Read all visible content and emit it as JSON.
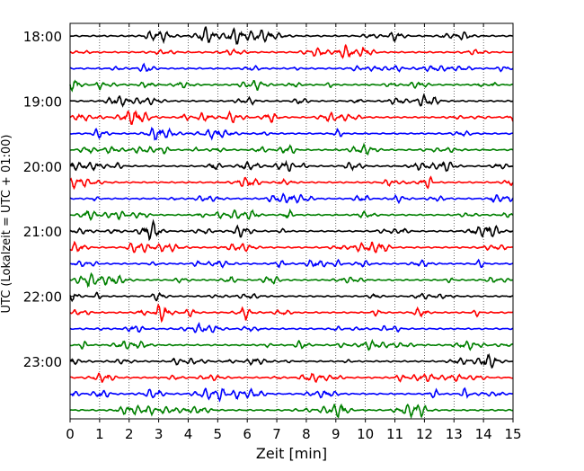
{
  "chart_data": {
    "type": "line",
    "title": "",
    "xlabel": "Zeit  [min]",
    "ylabel": "UTC (Lokalzeit = UTC + 01:00)",
    "xlim": [
      0,
      15
    ],
    "x_ticks": [
      0,
      1,
      2,
      3,
      4,
      5,
      6,
      7,
      8,
      9,
      10,
      11,
      12,
      13,
      14,
      15
    ],
    "x_tick_labels": [
      "0",
      "1",
      "2",
      "3",
      "4",
      "5",
      "6",
      "7",
      "8",
      "9",
      "10",
      "11",
      "12",
      "13",
      "14",
      "15"
    ],
    "y_tick_labels": [
      "18:00",
      "19:00",
      "20:00",
      "21:00",
      "22:00",
      "23:00"
    ],
    "grid": "vertical dotted at each minute",
    "trace_interval_minutes": 15,
    "traces_per_hour": 4,
    "trace_start_times": [
      "18:00",
      "18:15",
      "18:30",
      "18:45",
      "19:00",
      "19:15",
      "19:30",
      "19:45",
      "20:00",
      "20:15",
      "20:30",
      "20:45",
      "21:00",
      "21:15",
      "21:30",
      "21:45",
      "22:00",
      "22:15",
      "22:30",
      "22:45",
      "23:00",
      "23:15",
      "23:30",
      "23:45"
    ],
    "trace_colors": [
      "#000000",
      "#ff0000",
      "#0000ff",
      "#008000"
    ],
    "signal": "continuous seismic noise, small amplitude oscillation on each trace"
  }
}
